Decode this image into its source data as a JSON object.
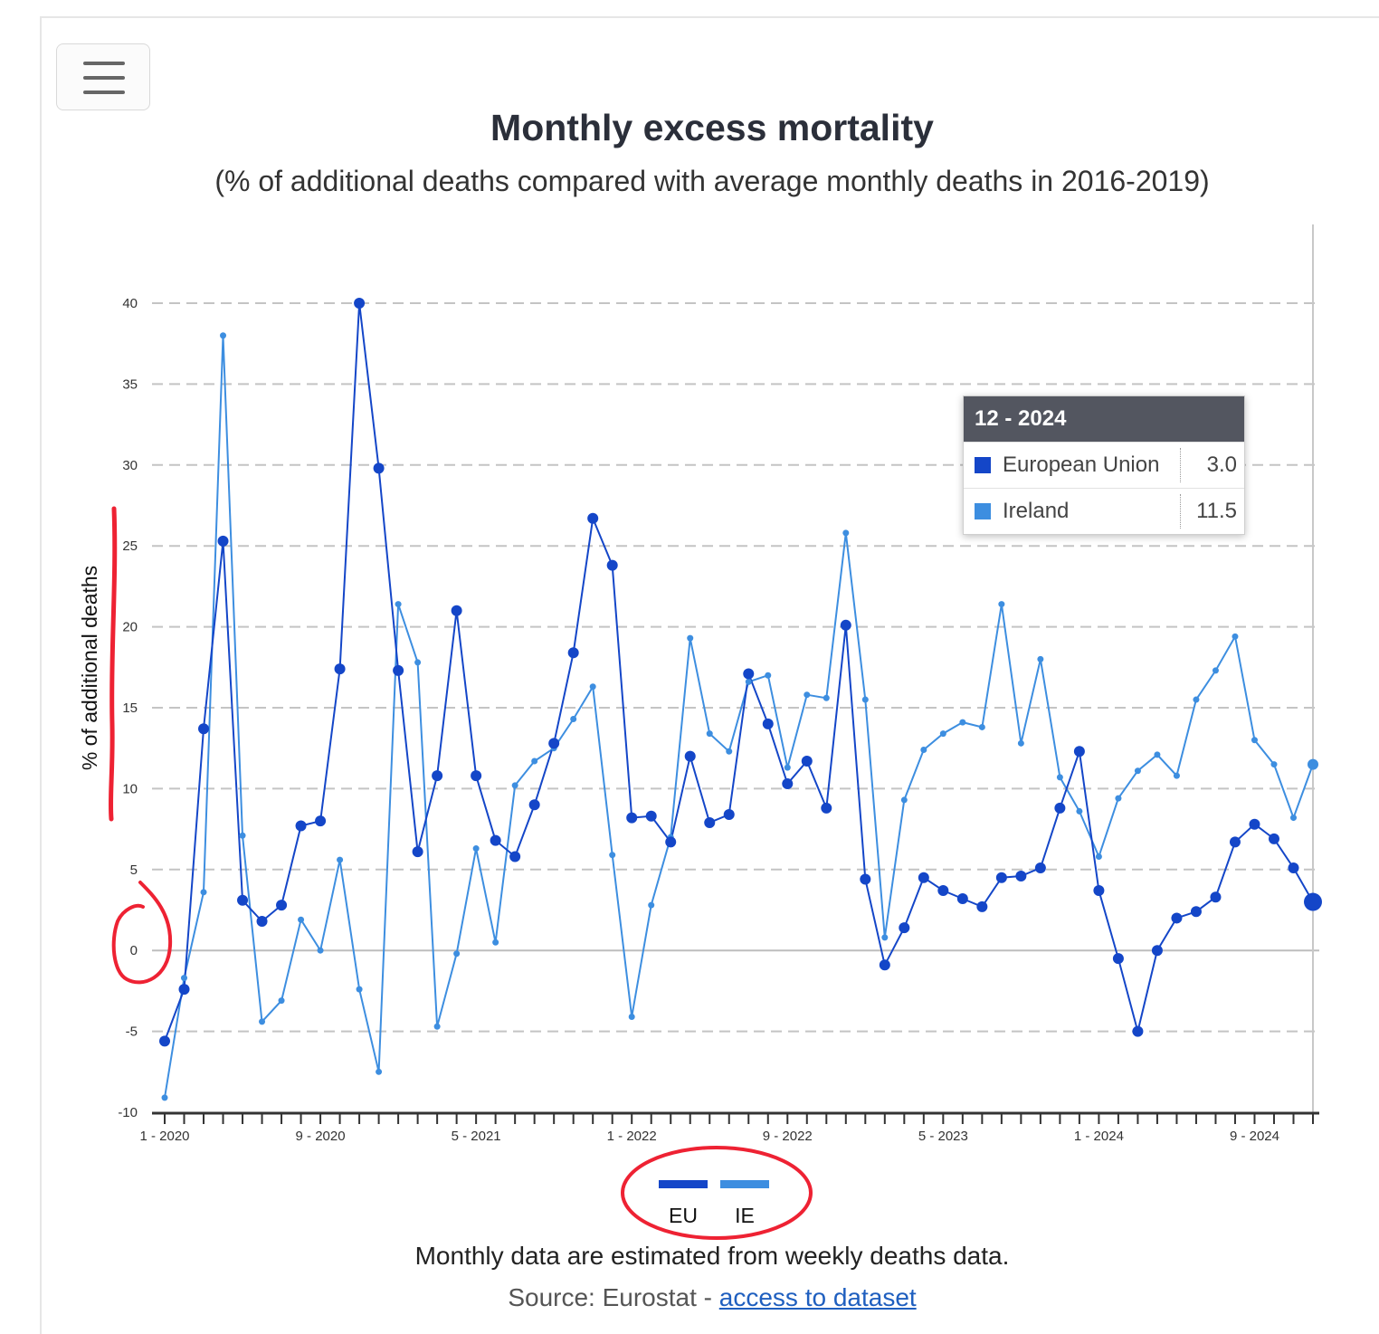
{
  "header": {
    "menu_icon": "hamburger-menu-icon"
  },
  "chart_data": {
    "type": "line",
    "title": "Monthly excess mortality",
    "subtitle": "(% of additional deaths compared with average monthly deaths in 2016-2019)",
    "ylabel": "% of additional deaths",
    "xlabel": "",
    "ylim": [
      -10,
      40
    ],
    "yticks": [
      -10,
      -5,
      0,
      5,
      10,
      15,
      20,
      25,
      30,
      35,
      40
    ],
    "x_tick_labels": [
      {
        "index": 0,
        "label": "1 - 2020"
      },
      {
        "index": 8,
        "label": "9 - 2020"
      },
      {
        "index": 16,
        "label": "5 - 2021"
      },
      {
        "index": 24,
        "label": "1 - 2022"
      },
      {
        "index": 32,
        "label": "9 - 2022"
      },
      {
        "index": 40,
        "label": "5 - 2023"
      },
      {
        "index": 48,
        "label": "1 - 2024"
      },
      {
        "index": 56,
        "label": "9 - 2024"
      }
    ],
    "x_start": "1 - 2020",
    "x_end": "12 - 2024",
    "grid": true,
    "legend_position": "bottom-center",
    "series": [
      {
        "name": "EU",
        "color": "#1446c8",
        "values": [
          -5.6,
          -2.4,
          13.7,
          25.3,
          3.1,
          1.8,
          2.8,
          7.7,
          8.0,
          17.4,
          40.0,
          29.8,
          17.3,
          6.1,
          10.8,
          21.0,
          10.8,
          6.8,
          5.8,
          9.0,
          12.8,
          18.4,
          26.7,
          23.8,
          8.2,
          8.3,
          6.7,
          12.0,
          7.9,
          8.4,
          17.1,
          14.0,
          10.3,
          11.7,
          8.8,
          20.1,
          4.4,
          -0.9,
          1.4,
          4.5,
          3.7,
          3.2,
          2.7,
          4.5,
          4.6,
          5.1,
          8.8,
          12.3,
          3.7,
          -0.5,
          -5.0,
          0.0,
          2.0,
          2.4,
          3.3,
          6.7,
          7.8,
          6.9,
          5.1,
          3.0
        ]
      },
      {
        "name": "IE",
        "color": "#3d8ee0",
        "values": [
          -9.1,
          -1.7,
          3.6,
          38.0,
          7.1,
          -4.4,
          -3.1,
          1.9,
          0.0,
          5.6,
          -2.4,
          -7.5,
          21.4,
          17.8,
          -4.7,
          -0.2,
          6.3,
          0.5,
          10.2,
          11.7,
          12.5,
          14.3,
          16.3,
          5.9,
          -4.1,
          2.8,
          7.0,
          19.3,
          13.4,
          12.3,
          16.6,
          17.0,
          11.3,
          15.8,
          15.6,
          25.8,
          15.5,
          0.8,
          9.3,
          12.4,
          13.4,
          14.1,
          13.8,
          21.4,
          12.8,
          18.0,
          10.7,
          8.6,
          5.8,
          9.4,
          11.1,
          12.1,
          10.8,
          15.5,
          17.3,
          19.4,
          13.0,
          11.5,
          8.2,
          11.5
        ]
      }
    ]
  },
  "tooltip": {
    "period": "12 - 2024",
    "rows": [
      {
        "name": "European Union",
        "value": "3.0",
        "color": "#1446c8"
      },
      {
        "name": "Ireland",
        "value": "11.5",
        "color": "#3d8ee0"
      }
    ]
  },
  "legend": [
    {
      "label": "EU",
      "color": "#1446c8"
    },
    {
      "label": "IE",
      "color": "#3d8ee0"
    }
  ],
  "footer": {
    "note": "Monthly data are estimated from weekly deaths data.",
    "source_prefix": "Source: Eurostat - ",
    "source_link": "access to dataset"
  },
  "annotation_color": "#ee2233"
}
